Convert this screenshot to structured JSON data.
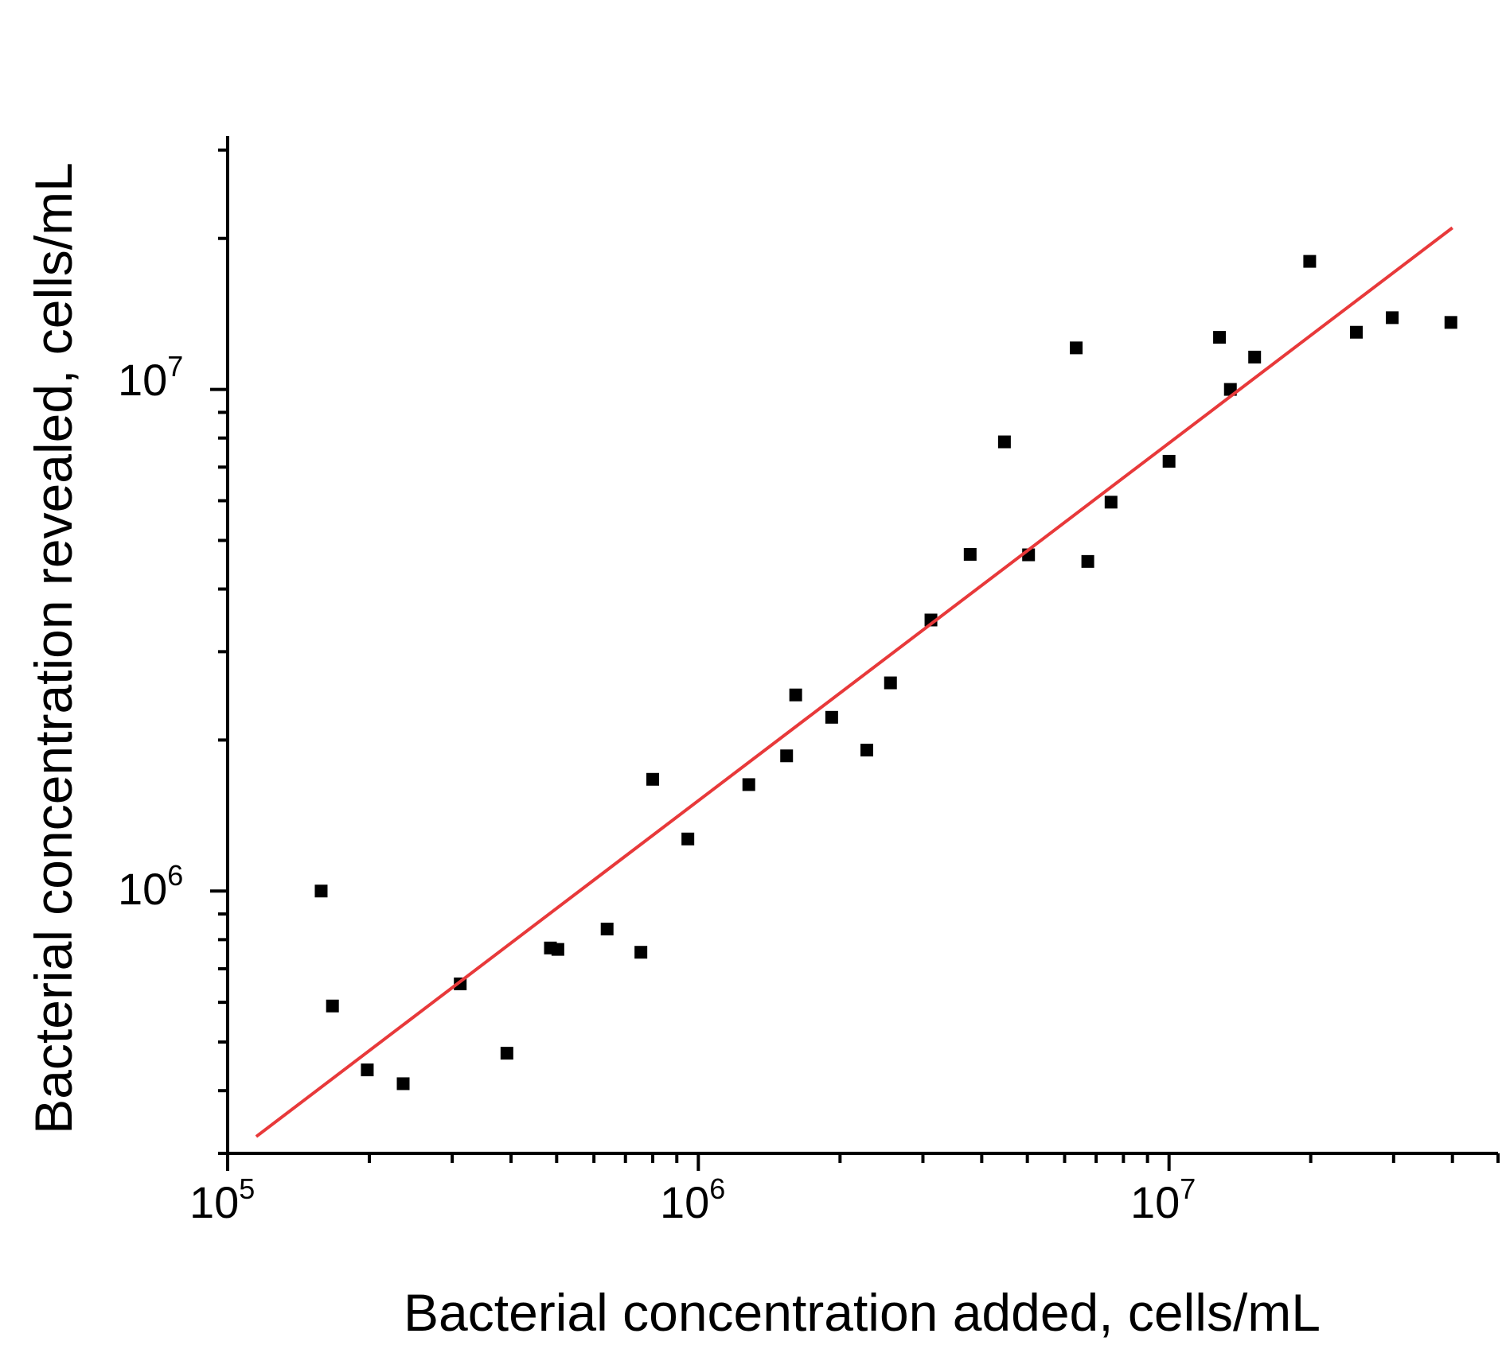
{
  "chart_data": {
    "type": "scatter",
    "xlabel": "Bacterial concentration added, cells/mL",
    "ylabel": "Bacterial concentration revealed, cells/mL",
    "xscale": "log",
    "yscale": "log",
    "xlim": [
      100000,
      50000000
    ],
    "ylim": [
      300000,
      32000000
    ],
    "x_ticks": [
      {
        "base": "10",
        "exp": "5",
        "value": 100000
      },
      {
        "base": "10",
        "exp": "6",
        "value": 1000000
      },
      {
        "base": "10",
        "exp": "7",
        "value": 10000000
      }
    ],
    "y_ticks": [
      {
        "base": "10",
        "exp": "6",
        "value": 1000000
      },
      {
        "base": "10",
        "exp": "7",
        "value": 10000000
      }
    ],
    "grid": false,
    "legend": "none",
    "colors": {
      "points": "#000000",
      "fit_line": "#e8393a",
      "axes": "#000000"
    },
    "series": [
      {
        "marker": "square",
        "points": [
          [
            158000,
            1000000
          ],
          [
            167000,
            590000
          ],
          [
            198000,
            440000
          ],
          [
            236000,
            413000
          ],
          [
            312000,
            653000
          ],
          [
            392000,
            475000
          ],
          [
            485000,
            770000
          ],
          [
            503000,
            765000
          ],
          [
            640000,
            840000
          ],
          [
            755000,
            755000
          ],
          [
            800000,
            1670000
          ],
          [
            950000,
            1270000
          ],
          [
            1280000,
            1630000
          ],
          [
            1540000,
            1860000
          ],
          [
            1610000,
            2460000
          ],
          [
            1920000,
            2220000
          ],
          [
            2280000,
            1910000
          ],
          [
            2560000,
            2600000
          ],
          [
            3120000,
            3470000
          ],
          [
            3780000,
            4690000
          ],
          [
            4470000,
            7860000
          ],
          [
            5030000,
            4680000
          ],
          [
            6350000,
            12100000
          ],
          [
            6720000,
            4540000
          ],
          [
            7530000,
            5960000
          ],
          [
            10000000,
            7190000
          ],
          [
            12800000,
            12700000
          ],
          [
            13500000,
            10000000
          ],
          [
            15200000,
            11600000
          ],
          [
            19900000,
            18000000
          ],
          [
            25000000,
            13000000
          ],
          [
            29800000,
            13900000
          ],
          [
            39700000,
            13600000
          ]
        ]
      }
    ],
    "fit_line": {
      "x": [
        115000,
        40000000
      ],
      "y": [
        324000,
        21000000
      ]
    }
  }
}
